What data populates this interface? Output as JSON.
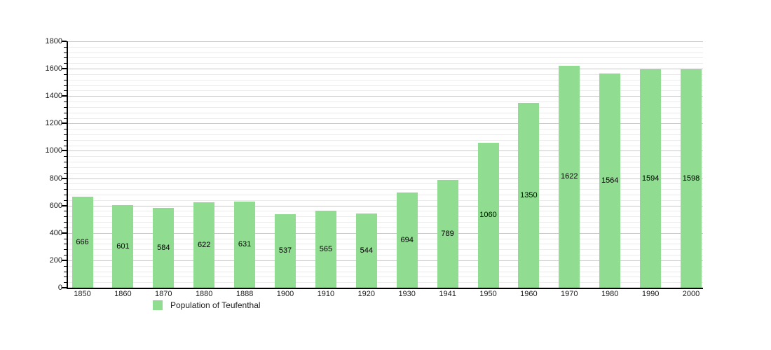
{
  "chart_data": {
    "type": "bar",
    "title": "",
    "xlabel": "",
    "ylabel": "",
    "categories": [
      "1850",
      "1860",
      "1870",
      "1880",
      "1888",
      "1900",
      "1910",
      "1920",
      "1930",
      "1941",
      "1950",
      "1960",
      "1970",
      "1980",
      "1990",
      "2000"
    ],
    "values": [
      666,
      601,
      584,
      622,
      631,
      537,
      565,
      544,
      694,
      789,
      1060,
      1350,
      1622,
      1564,
      1594,
      1598
    ],
    "series_name": "Population of Teufenthal",
    "ylim": [
      0,
      1800
    ],
    "ytick_step": 200,
    "yticks": [
      0,
      200,
      400,
      600,
      800,
      1000,
      1200,
      1400,
      1600,
      1800
    ],
    "minor_grid_step": 40,
    "grid": true,
    "bar_value_labels": "inside-middle",
    "legend_position": "below-left"
  },
  "legend": {
    "label": "Population of Teufenthal"
  },
  "colors": {
    "background": "#ffffff",
    "bar_fill": "#90dc90",
    "bar_label": "#000000",
    "axis": "#000000",
    "grid_major": "#c8c8c8",
    "grid_minor": "#ebebeb",
    "tick_label": "#1a1a1a"
  }
}
